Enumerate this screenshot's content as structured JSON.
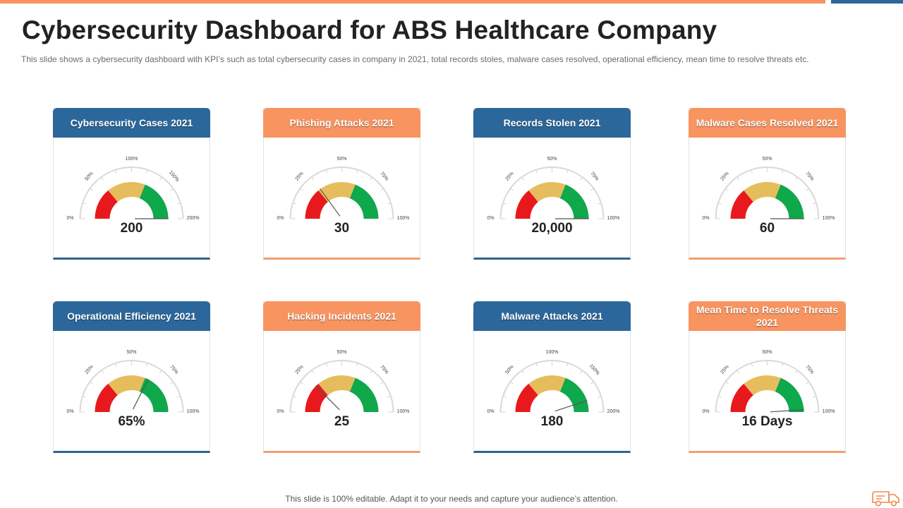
{
  "header": {
    "title": "Cybersecurity Dashboard for ABS Healthcare Company",
    "subtitle": "This slide shows a cybersecurity dashboard with KPI’s such as total cybersecurity cases in company in 2021, total records stoles, malware cases resolved, operational efficiency, mean time to resolve threats etc."
  },
  "footer": {
    "text": "This slide is 100% editable. Adapt it to your needs and capture your audience’s attention."
  },
  "colors": {
    "accent_orange": "#f79460",
    "accent_blue": "#2b679a",
    "gauge_red": "#e8191c",
    "gauge_yellow": "#e6bd5c",
    "gauge_green": "#0fa84b",
    "scale_gray": "#d9d9d9"
  },
  "chart_data": [
    {
      "type": "gauge",
      "title": "Cybersecurity Cases 2021",
      "value_label": "200",
      "needle_fraction": 1.0,
      "tick_labels": [
        "0%",
        "50%",
        "100%",
        "150%",
        "200%"
      ]
    },
    {
      "type": "gauge",
      "title": "Phishing Attacks 2021",
      "value_label": "30",
      "needle_fraction": 0.3,
      "tick_labels": [
        "0%",
        "25%",
        "50%",
        "75%",
        "100%"
      ]
    },
    {
      "type": "gauge",
      "title": "Records Stolen 2021",
      "value_label": "20,000",
      "needle_fraction": 1.0,
      "tick_labels": [
        "0%",
        "25%",
        "50%",
        "75%",
        "100%"
      ]
    },
    {
      "type": "gauge",
      "title": "Malware Cases Resolved 2021",
      "value_label": "60",
      "needle_fraction": 1.0,
      "tick_labels": [
        "0%",
        "25%",
        "50%",
        "75%",
        "100%"
      ]
    },
    {
      "type": "gauge",
      "title": "Operational Efficiency 2021",
      "value_label": "65%",
      "needle_fraction": 0.65,
      "tick_labels": [
        "0%",
        "25%",
        "50%",
        "75%",
        "100%"
      ]
    },
    {
      "type": "gauge",
      "title": "Hacking Incidents 2021",
      "value_label": "25",
      "needle_fraction": 0.25,
      "tick_labels": [
        "0%",
        "25%",
        "50%",
        "75%",
        "100%"
      ]
    },
    {
      "type": "gauge",
      "title": "Malware Attacks 2021",
      "value_label": "180",
      "needle_fraction": 0.9,
      "tick_labels": [
        "0%",
        "50%",
        "100%",
        "150%",
        "200%"
      ]
    },
    {
      "type": "gauge",
      "title": "Mean Time to Resolve Threats 2021",
      "value_label": "16 Days",
      "needle_fraction": 0.98,
      "tick_labels": [
        "0%",
        "25%",
        "50%",
        "75%",
        "100%"
      ]
    }
  ]
}
